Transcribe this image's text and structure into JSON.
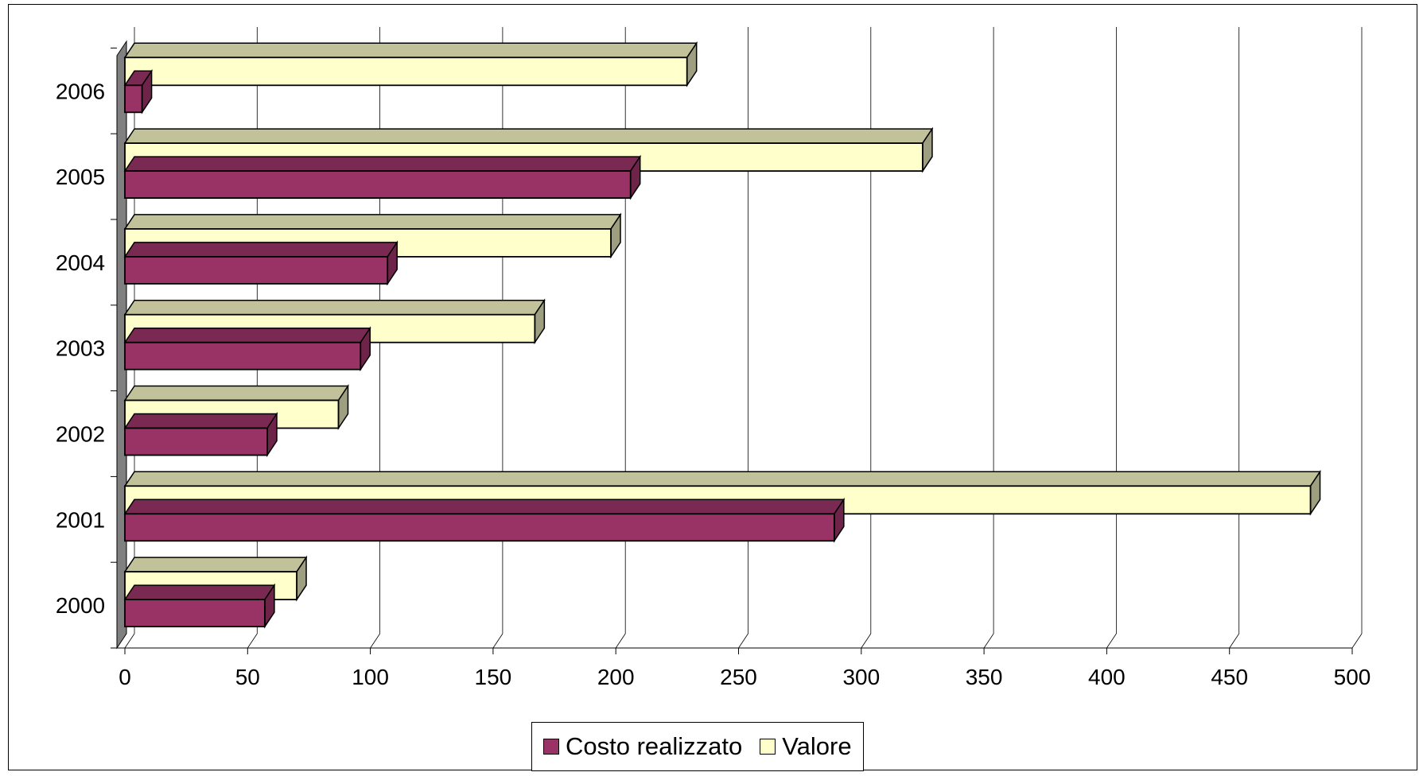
{
  "chart_data": {
    "type": "bar",
    "orientation": "horizontal",
    "three_d": true,
    "title": "",
    "xlabel": "",
    "ylabel": "",
    "categories": [
      "2000",
      "2001",
      "2002",
      "2003",
      "2004",
      "2005",
      "2006"
    ],
    "series": [
      {
        "name": "Costo realizzato",
        "color": "#993366",
        "top_color": "#7a2952",
        "side_color": "#6e2448",
        "values": [
          57,
          289,
          58,
          96,
          107,
          206,
          7
        ]
      },
      {
        "name": "Valore",
        "color": "#ffffcc",
        "top_color": "#c2c29a",
        "side_color": "#9e9e80",
        "values": [
          70,
          483,
          87,
          167,
          198,
          325,
          229
        ]
      }
    ],
    "xlim": [
      0,
      500
    ],
    "x_ticks": [
      "0",
      "50",
      "100",
      "150",
      "200",
      "250",
      "300",
      "350",
      "400",
      "450",
      "500"
    ],
    "grid": true,
    "legend_position": "bottom"
  }
}
